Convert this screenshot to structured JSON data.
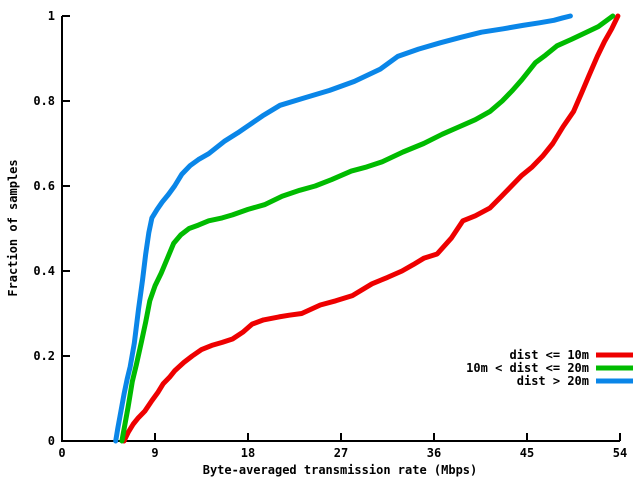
{
  "figure": {
    "background": "#ffffff"
  },
  "chart_data": {
    "type": "line",
    "subtype": "cdf",
    "title": "",
    "xlabel": "Byte-averaged transmission rate (Mbps)",
    "ylabel": "Fraction of samples",
    "xlim": [
      0,
      54
    ],
    "ylim": [
      0,
      1
    ],
    "grid": false,
    "legend_position": "inside-right-lower",
    "axis_color": "#000000",
    "x_ticks": [
      {
        "value": 0,
        "label": "0"
      },
      {
        "value": 9,
        "label": "9"
      },
      {
        "value": 18,
        "label": "18"
      },
      {
        "value": 27,
        "label": "27"
      },
      {
        "value": 36,
        "label": "36"
      },
      {
        "value": 45,
        "label": "45"
      },
      {
        "value": 54,
        "label": "54"
      }
    ],
    "y_ticks": [
      {
        "value": 0,
        "label": "0"
      },
      {
        "value": 0.2,
        "label": "0.2"
      },
      {
        "value": 0.4,
        "label": "0.4"
      },
      {
        "value": 0.6,
        "label": "0.6"
      },
      {
        "value": 0.8,
        "label": "0.8"
      },
      {
        "value": 1,
        "label": "1"
      }
    ],
    "series": [
      {
        "name": "dist <= 10m",
        "slug": "dist-le-10m",
        "color": "#ee0000",
        "points": [
          [
            6.0,
            0
          ],
          [
            6.4,
            0.02
          ],
          [
            6.9,
            0.04
          ],
          [
            7.4,
            0.055
          ],
          [
            8.0,
            0.07
          ],
          [
            8.7,
            0.095
          ],
          [
            9.3,
            0.115
          ],
          [
            9.8,
            0.135
          ],
          [
            10.4,
            0.15
          ],
          [
            10.9,
            0.165
          ],
          [
            11.8,
            0.185
          ],
          [
            12.6,
            0.2
          ],
          [
            13.5,
            0.215
          ],
          [
            14.5,
            0.225
          ],
          [
            15.5,
            0.232
          ],
          [
            16.5,
            0.24
          ],
          [
            17.5,
            0.256
          ],
          [
            18.4,
            0.275
          ],
          [
            19.5,
            0.285
          ],
          [
            21.0,
            0.292
          ],
          [
            22.0,
            0.296
          ],
          [
            23.2,
            0.3
          ],
          [
            25.0,
            0.32
          ],
          [
            26.5,
            0.33
          ],
          [
            28.1,
            0.342
          ],
          [
            30.0,
            0.37
          ],
          [
            31.5,
            0.385
          ],
          [
            32.9,
            0.4
          ],
          [
            34.0,
            0.415
          ],
          [
            35.0,
            0.43
          ],
          [
            36.3,
            0.44
          ],
          [
            37.7,
            0.478
          ],
          [
            38.8,
            0.518
          ],
          [
            40.0,
            0.53
          ],
          [
            41.4,
            0.548
          ],
          [
            42.5,
            0.575
          ],
          [
            43.5,
            0.6
          ],
          [
            44.5,
            0.625
          ],
          [
            45.5,
            0.645
          ],
          [
            46.5,
            0.67
          ],
          [
            47.5,
            0.7
          ],
          [
            48.5,
            0.74
          ],
          [
            49.5,
            0.775
          ],
          [
            50.3,
            0.82
          ],
          [
            51.0,
            0.86
          ],
          [
            51.8,
            0.905
          ],
          [
            52.5,
            0.94
          ],
          [
            53.2,
            0.97
          ],
          [
            53.8,
            1.0
          ]
        ]
      },
      {
        "name": "10m < dist <= 20m",
        "slug": "10m-lt-dist-le-20m",
        "color": "#00bb00",
        "points": [
          [
            5.8,
            0
          ],
          [
            6.1,
            0.04
          ],
          [
            6.4,
            0.08
          ],
          [
            6.8,
            0.14
          ],
          [
            7.2,
            0.18
          ],
          [
            7.7,
            0.235
          ],
          [
            8.1,
            0.28
          ],
          [
            8.5,
            0.33
          ],
          [
            9.0,
            0.365
          ],
          [
            9.6,
            0.395
          ],
          [
            10.2,
            0.43
          ],
          [
            10.8,
            0.465
          ],
          [
            11.5,
            0.485
          ],
          [
            12.3,
            0.5
          ],
          [
            13.2,
            0.508
          ],
          [
            14.2,
            0.518
          ],
          [
            15.5,
            0.525
          ],
          [
            16.5,
            0.532
          ],
          [
            18.0,
            0.545
          ],
          [
            19.6,
            0.556
          ],
          [
            21.3,
            0.576
          ],
          [
            23.0,
            0.59
          ],
          [
            24.5,
            0.6
          ],
          [
            26.1,
            0.615
          ],
          [
            28.0,
            0.635
          ],
          [
            29.5,
            0.645
          ],
          [
            31.0,
            0.657
          ],
          [
            33.0,
            0.68
          ],
          [
            35.0,
            0.7
          ],
          [
            36.8,
            0.722
          ],
          [
            38.5,
            0.74
          ],
          [
            40.0,
            0.756
          ],
          [
            41.4,
            0.775
          ],
          [
            42.6,
            0.8
          ],
          [
            43.6,
            0.825
          ],
          [
            44.5,
            0.85
          ],
          [
            45.8,
            0.89
          ],
          [
            46.8,
            0.908
          ],
          [
            47.9,
            0.93
          ],
          [
            49.3,
            0.945
          ],
          [
            50.6,
            0.96
          ],
          [
            51.9,
            0.975
          ],
          [
            53.3,
            1.0
          ]
        ]
      },
      {
        "name": "dist > 20m",
        "slug": "dist-gt-20m",
        "color": "#0a86e8",
        "points": [
          [
            5.2,
            0
          ],
          [
            5.4,
            0.03
          ],
          [
            5.7,
            0.07
          ],
          [
            6.0,
            0.11
          ],
          [
            6.3,
            0.145
          ],
          [
            6.6,
            0.175
          ],
          [
            7.0,
            0.23
          ],
          [
            7.4,
            0.31
          ],
          [
            7.8,
            0.38
          ],
          [
            8.1,
            0.44
          ],
          [
            8.4,
            0.49
          ],
          [
            8.7,
            0.525
          ],
          [
            9.2,
            0.545
          ],
          [
            9.7,
            0.562
          ],
          [
            10.3,
            0.58
          ],
          [
            10.9,
            0.6
          ],
          [
            11.6,
            0.628
          ],
          [
            12.4,
            0.648
          ],
          [
            13.2,
            0.662
          ],
          [
            14.2,
            0.676
          ],
          [
            15.7,
            0.705
          ],
          [
            17.0,
            0.725
          ],
          [
            18.2,
            0.745
          ],
          [
            19.4,
            0.765
          ],
          [
            21.1,
            0.79
          ],
          [
            23.3,
            0.806
          ],
          [
            25.9,
            0.825
          ],
          [
            28.3,
            0.846
          ],
          [
            30.8,
            0.875
          ],
          [
            32.5,
            0.905
          ],
          [
            34.5,
            0.922
          ],
          [
            36.6,
            0.937
          ],
          [
            38.6,
            0.95
          ],
          [
            40.6,
            0.962
          ],
          [
            42.7,
            0.97
          ],
          [
            44.6,
            0.978
          ],
          [
            46.2,
            0.984
          ],
          [
            47.6,
            0.99
          ],
          [
            48.4,
            0.995
          ],
          [
            49.2,
            1.0
          ]
        ]
      }
    ]
  }
}
